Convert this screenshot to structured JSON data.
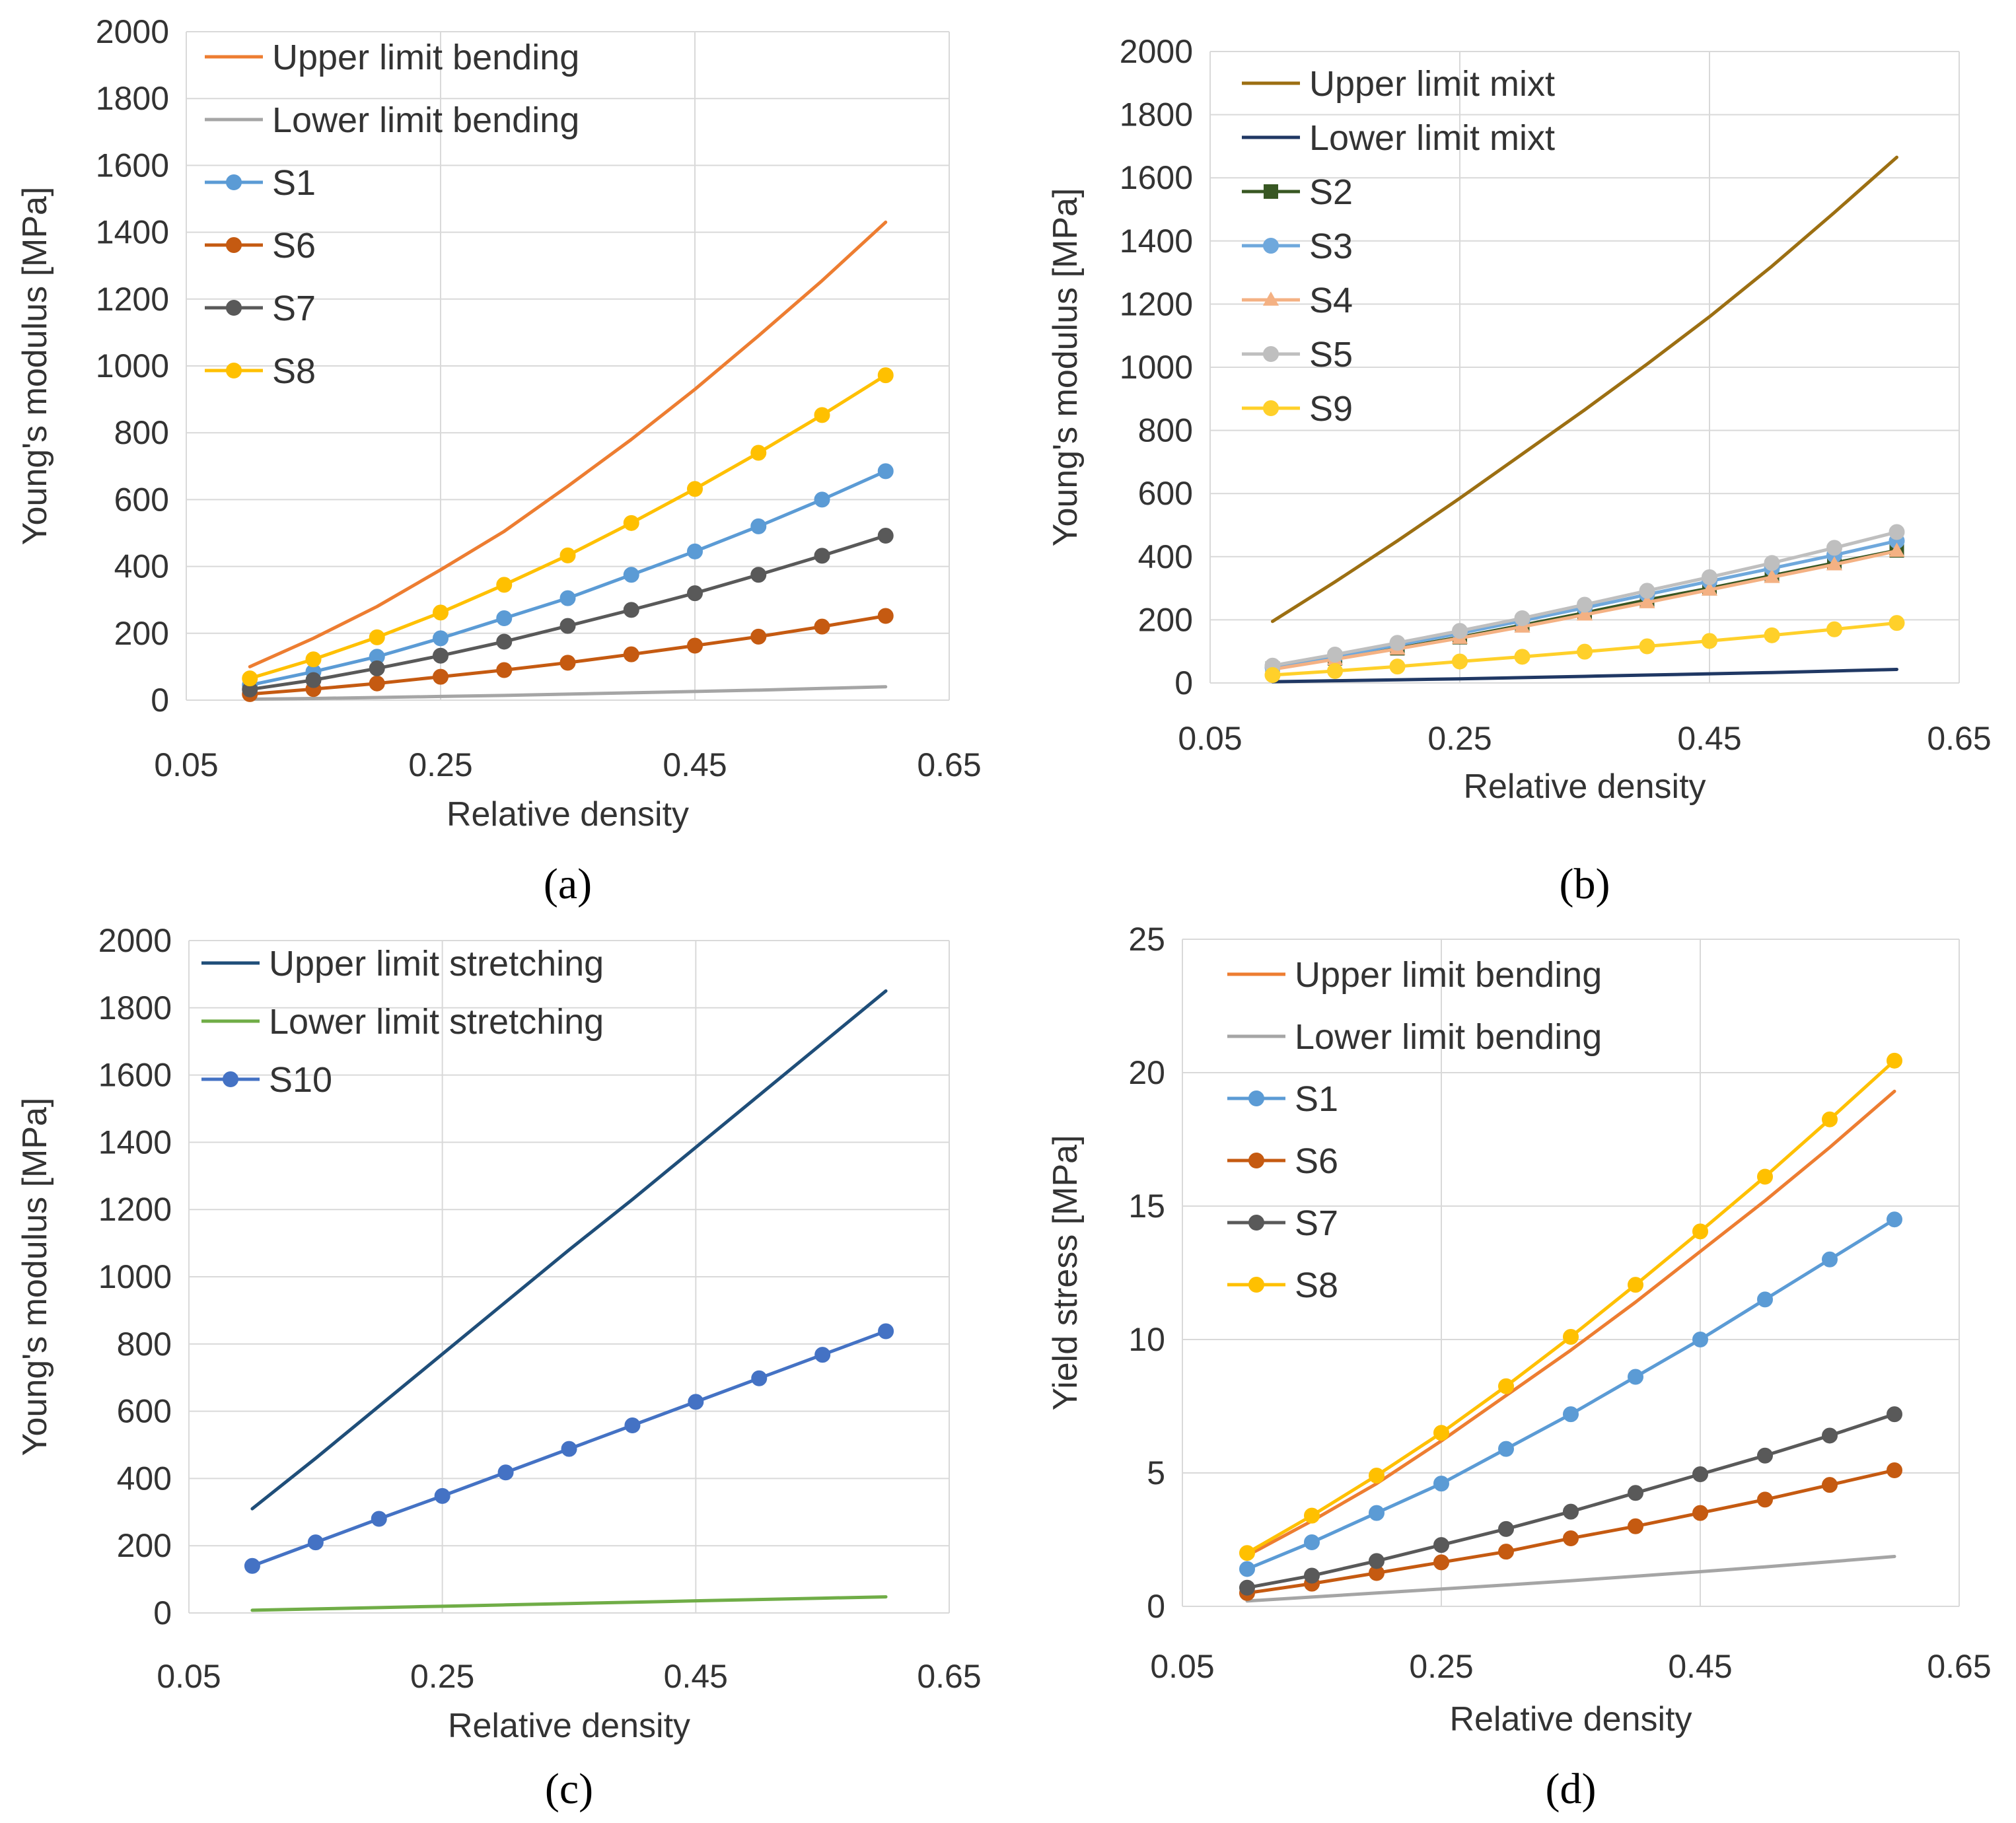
{
  "chart_data": [
    {
      "type": "line",
      "panel_label": "(a)",
      "xlabel": "Relative density",
      "ylabel": "Young's modulus [MPa]",
      "xlim": [
        0.05,
        0.65
      ],
      "ylim": [
        0,
        2000
      ],
      "xticks": [
        "0.05",
        "0.25",
        "0.45",
        "0.65"
      ],
      "xtick_values": [
        0.05,
        0.25,
        0.45,
        0.65
      ],
      "yticks": [
        "0",
        "200",
        "400",
        "600",
        "800",
        "1000",
        "1200",
        "1400",
        "1600",
        "1800",
        "2000"
      ],
      "ytick_values": [
        0,
        200,
        400,
        600,
        800,
        1000,
        1200,
        1400,
        1600,
        1800,
        2000
      ],
      "grid": true,
      "legend_position": "top-left",
      "x": [
        0.1,
        0.15,
        0.2,
        0.25,
        0.3,
        0.35,
        0.4,
        0.45,
        0.5,
        0.55,
        0.6
      ],
      "series": [
        {
          "name": "Upper limit bending",
          "color": "#ED7D31",
          "marker": "none",
          "values": [
            100,
            185,
            280,
            390,
            505,
            640,
            780,
            930,
            1090,
            1255,
            1430
          ]
        },
        {
          "name": "Lower limit bending",
          "color": "#A5A5A5",
          "marker": "none",
          "values": [
            3,
            5,
            8,
            11,
            14,
            18,
            22,
            26,
            30,
            35,
            40
          ]
        },
        {
          "name": "S1",
          "color": "#5B9BD5",
          "marker": "circle",
          "values": [
            45,
            85,
            130,
            185,
            245,
            305,
            375,
            445,
            520,
            600,
            685
          ]
        },
        {
          "name": "S6",
          "color": "#C55A11",
          "marker": "circle",
          "values": [
            18,
            33,
            50,
            70,
            90,
            112,
            137,
            163,
            190,
            220,
            252
          ]
        },
        {
          "name": "S7",
          "color": "#595959",
          "marker": "circle",
          "values": [
            32,
            60,
            95,
            133,
            175,
            222,
            270,
            320,
            375,
            432,
            492
          ]
        },
        {
          "name": "S8",
          "color": "#FFC000",
          "marker": "circle",
          "values": [
            65,
            122,
            188,
            262,
            345,
            433,
            530,
            632,
            740,
            853,
            972
          ]
        }
      ]
    },
    {
      "type": "line",
      "panel_label": "(b)",
      "xlabel": "Relative density",
      "ylabel": "Young's modulus [MPa]",
      "xlim": [
        0.05,
        0.65
      ],
      "ylim": [
        0,
        2000
      ],
      "xticks": [
        "0.05",
        "0.25",
        "0.45",
        "0.65"
      ],
      "xtick_values": [
        0.05,
        0.25,
        0.45,
        0.65
      ],
      "yticks": [
        "0",
        "200",
        "400",
        "600",
        "800",
        "1000",
        "1200",
        "1400",
        "1600",
        "1800",
        "2000"
      ],
      "ytick_values": [
        0,
        200,
        400,
        600,
        800,
        1000,
        1200,
        1400,
        1600,
        1800,
        2000
      ],
      "grid": true,
      "legend_position": "top-left",
      "x": [
        0.1,
        0.15,
        0.2,
        0.25,
        0.3,
        0.35,
        0.4,
        0.45,
        0.5,
        0.55,
        0.6
      ],
      "series": [
        {
          "name": "Upper limit mixt",
          "color": "#9C6F12",
          "marker": "none",
          "values": [
            195,
            320,
            450,
            585,
            725,
            865,
            1010,
            1160,
            1320,
            1490,
            1665
          ]
        },
        {
          "name": "Lower limit mixt",
          "color": "#203864",
          "marker": "none",
          "values": [
            4,
            7,
            10,
            13,
            17,
            21,
            25,
            29,
            33,
            38,
            43
          ]
        },
        {
          "name": "S2",
          "color": "#385723",
          "marker": "square",
          "values": [
            45,
            78,
            110,
            145,
            183,
            222,
            263,
            300,
            340,
            380,
            420
          ]
        },
        {
          "name": "S3",
          "color": "#6FA8DC",
          "marker": "circle",
          "values": [
            50,
            84,
            120,
            157,
            197,
            238,
            280,
            322,
            363,
            405,
            450
          ]
        },
        {
          "name": "S4",
          "color": "#F4B183",
          "marker": "triangle",
          "values": [
            43,
            75,
            108,
            142,
            178,
            216,
            255,
            295,
            335,
            375,
            418
          ]
        },
        {
          "name": "S5",
          "color": "#BFBFBF",
          "marker": "circle",
          "values": [
            55,
            90,
            127,
            165,
            205,
            248,
            292,
            335,
            380,
            428,
            478
          ]
        },
        {
          "name": "S9",
          "color": "#FFD02A",
          "marker": "circle",
          "values": [
            25,
            38,
            52,
            68,
            83,
            99,
            116,
            133,
            151,
            170,
            190
          ]
        }
      ]
    },
    {
      "type": "line",
      "panel_label": "(c)",
      "xlabel": "Relative density",
      "ylabel": "Young's modulus [MPa]",
      "xlim": [
        0.05,
        0.65
      ],
      "ylim": [
        0,
        2000
      ],
      "xticks": [
        "0.05",
        "0.25",
        "0.45",
        "0.65"
      ],
      "xtick_values": [
        0.05,
        0.25,
        0.45,
        0.65
      ],
      "yticks": [
        "0",
        "200",
        "400",
        "600",
        "800",
        "1000",
        "1200",
        "1400",
        "1600",
        "1800",
        "2000"
      ],
      "ytick_values": [
        0,
        200,
        400,
        600,
        800,
        1000,
        1200,
        1400,
        1600,
        1800,
        2000
      ],
      "grid": true,
      "legend_position": "top-left",
      "x": [
        0.1,
        0.15,
        0.2,
        0.25,
        0.3,
        0.35,
        0.4,
        0.45,
        0.5,
        0.55,
        0.6
      ],
      "series": [
        {
          "name": "Upper limit stretching",
          "color": "#1F4E79",
          "marker": "none",
          "values": [
            310,
            460,
            615,
            770,
            925,
            1080,
            1230,
            1385,
            1540,
            1695,
            1850
          ]
        },
        {
          "name": "Lower limit stretching",
          "color": "#70AD47",
          "marker": "none",
          "values": [
            8,
            12,
            16,
            20,
            24,
            28,
            32,
            36,
            40,
            44,
            48
          ]
        },
        {
          "name": "S10",
          "color": "#4472C4",
          "marker": "circle",
          "values": [
            140,
            210,
            280,
            348,
            418,
            488,
            558,
            628,
            698,
            768,
            838
          ]
        }
      ]
    },
    {
      "type": "line",
      "panel_label": "(d)",
      "xlabel": "Relative density",
      "ylabel": "Yield stress [MPa]",
      "xlim": [
        0.05,
        0.65
      ],
      "ylim": [
        0,
        25
      ],
      "xticks": [
        "0.05",
        "0.25",
        "0.45",
        "0.65"
      ],
      "xtick_values": [
        0.05,
        0.25,
        0.45,
        0.65
      ],
      "yticks": [
        "0",
        "5",
        "10",
        "15",
        "20",
        "25"
      ],
      "ytick_values": [
        0,
        5,
        10,
        15,
        20,
        25
      ],
      "grid": true,
      "legend_position": "top-left",
      "x": [
        0.1,
        0.15,
        0.2,
        0.25,
        0.3,
        0.35,
        0.4,
        0.45,
        0.5,
        0.55,
        0.6
      ],
      "series": [
        {
          "name": "Upper limit bending",
          "color": "#ED7D31",
          "marker": "none",
          "values": [
            1.9,
            3.2,
            4.6,
            6.2,
            7.9,
            9.6,
            11.4,
            13.3,
            15.2,
            17.2,
            19.3
          ]
        },
        {
          "name": "Lower limit bending",
          "color": "#A5A5A5",
          "marker": "none",
          "values": [
            0.2,
            0.35,
            0.5,
            0.65,
            0.8,
            0.96,
            1.13,
            1.3,
            1.48,
            1.67,
            1.87
          ]
        },
        {
          "name": "S1",
          "color": "#5B9BD5",
          "marker": "circle",
          "values": [
            1.4,
            2.4,
            3.5,
            4.6,
            5.9,
            7.2,
            8.6,
            10.0,
            11.5,
            13.0,
            14.5
          ]
        },
        {
          "name": "S6",
          "color": "#C55A11",
          "marker": "circle",
          "values": [
            0.5,
            0.85,
            1.25,
            1.65,
            2.05,
            2.55,
            3.0,
            3.5,
            4.0,
            4.55,
            5.1
          ]
        },
        {
          "name": "S7",
          "color": "#595959",
          "marker": "circle",
          "values": [
            0.7,
            1.15,
            1.7,
            2.3,
            2.9,
            3.55,
            4.25,
            4.95,
            5.65,
            6.4,
            7.2
          ]
        },
        {
          "name": "S8",
          "color": "#FFC000",
          "marker": "circle",
          "values": [
            2.0,
            3.4,
            4.9,
            6.5,
            8.25,
            10.1,
            12.05,
            14.05,
            16.1,
            18.25,
            20.45
          ]
        }
      ]
    }
  ]
}
